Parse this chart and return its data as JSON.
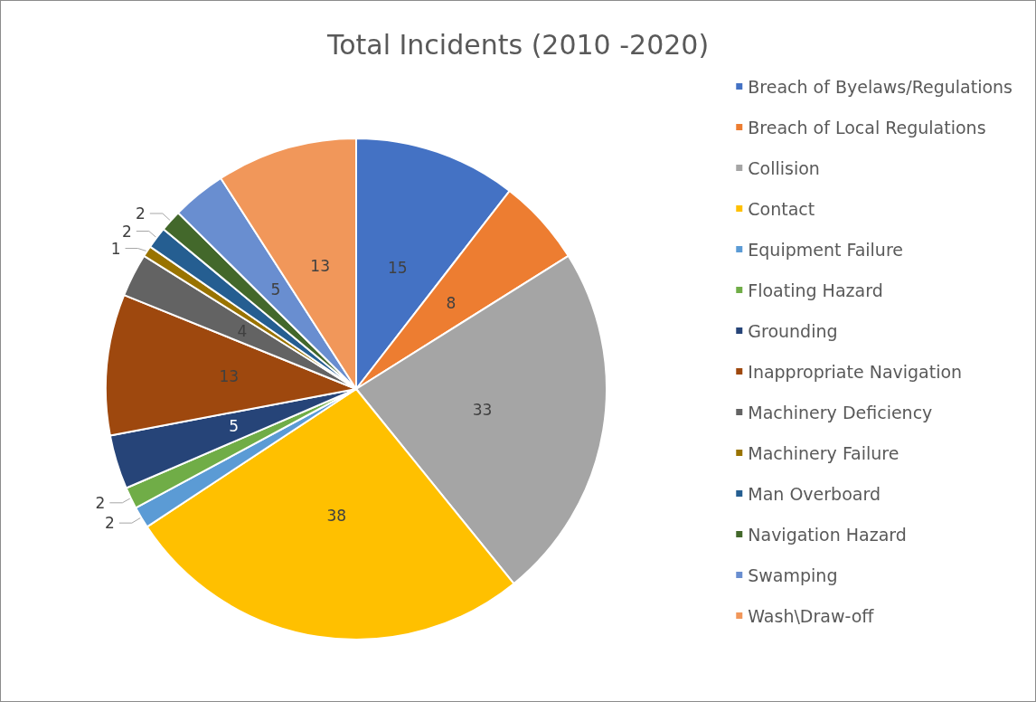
{
  "chart_data": {
    "type": "pie",
    "title": "Total Incidents (2010 -2020)",
    "categories": [
      "Breach of Byelaws/Regulations",
      "Breach of Local Regulations",
      "Collision",
      "Contact",
      "Equipment Failure",
      "Floating Hazard",
      "Grounding",
      "Inappropriate Navigation",
      "Machinery Deficiency",
      "Machinery Failure",
      "Man Overboard",
      "Navigation Hazard",
      "Swamping",
      "Wash\\Draw-off"
    ],
    "values": [
      15,
      8,
      33,
      38,
      2,
      2,
      5,
      13,
      4,
      1,
      2,
      2,
      5,
      13
    ],
    "colors": [
      "#4472c4",
      "#ed7d31",
      "#a5a5a5",
      "#ffc000",
      "#5b9bd5",
      "#70ad47",
      "#264478",
      "#9e480e",
      "#636363",
      "#997300",
      "#255e91",
      "#43682b",
      "#698ed0",
      "#f1975a"
    ],
    "data_labels": true,
    "legend": "right"
  }
}
